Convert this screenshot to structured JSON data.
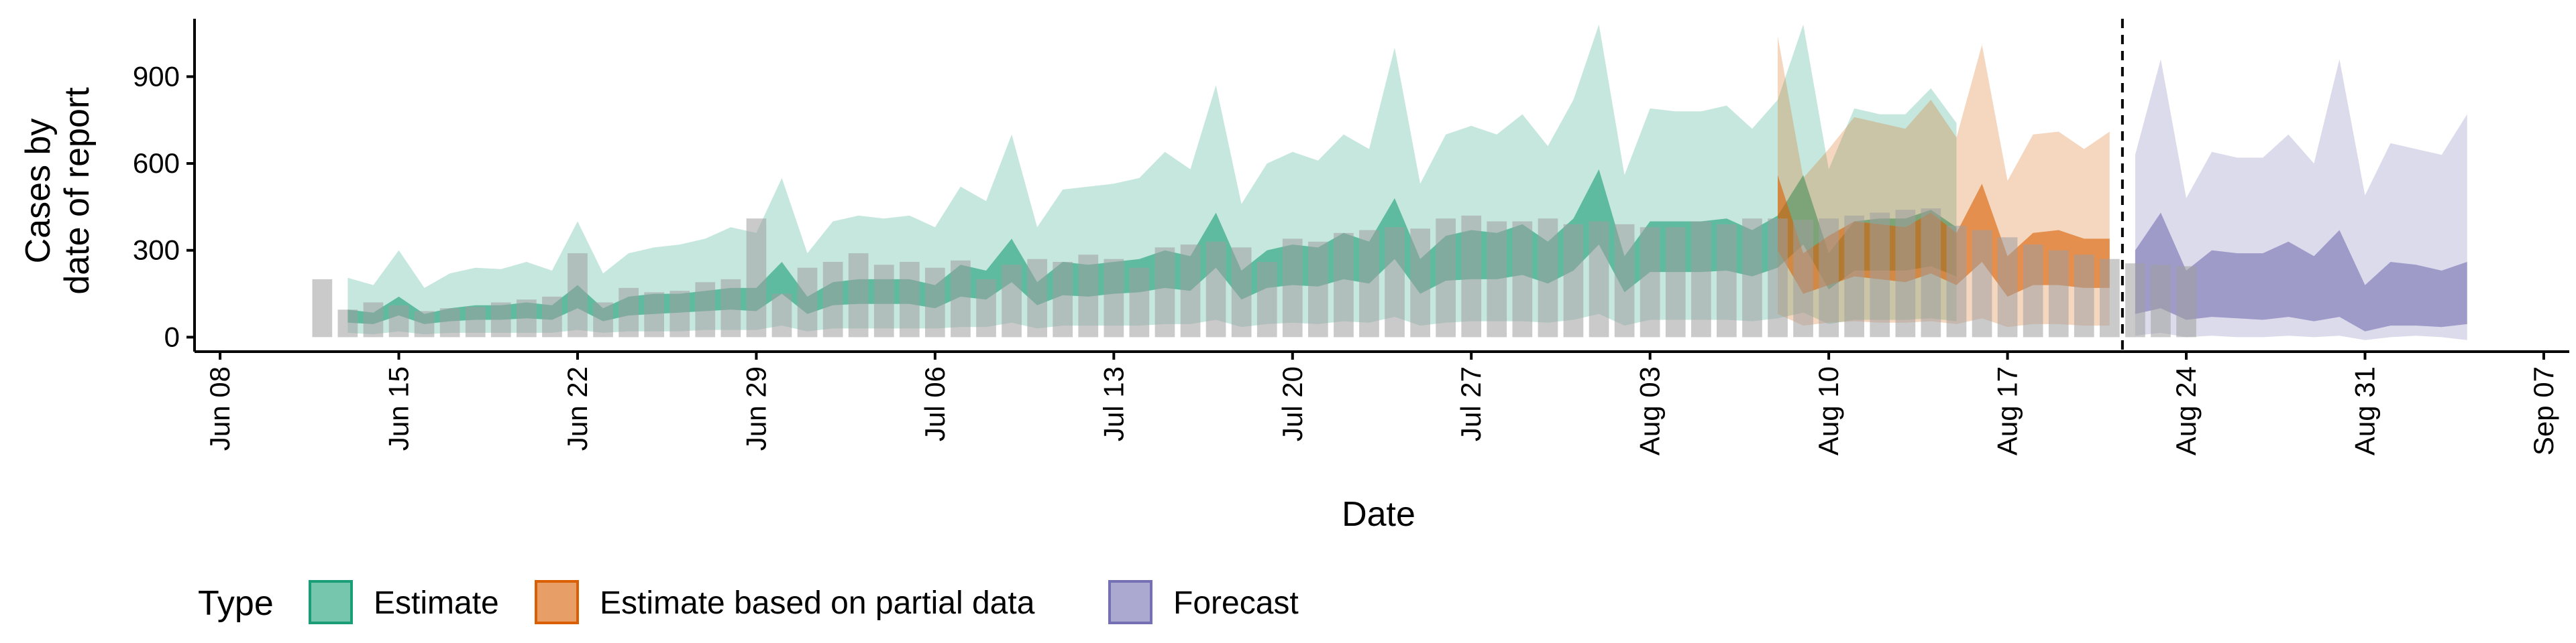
{
  "chart_data": {
    "type": "area",
    "xlabel": "Date",
    "ylabel_lines": [
      "Cases by",
      "date of report"
    ],
    "x_ticks": [
      "Jun 08",
      "Jun 15",
      "Jun 22",
      "Jun 29",
      "Jul 06",
      "Jul 13",
      "Jul 20",
      "Jul 27",
      "Aug 03",
      "Aug 10",
      "Aug 17",
      "Aug 24",
      "Aug 31",
      "Sep 07"
    ],
    "y_ticks": [
      0,
      300,
      600,
      900
    ],
    "xlim": [
      "2020-06-07",
      "2020-09-08"
    ],
    "ylim": [
      -50,
      1130
    ],
    "forecast_date": "2020-08-21",
    "colors": {
      "Estimate": "#1b9e77",
      "Estimate based on partial data": "#d95f02",
      "Forecast": "#7570b3",
      "reported": "#9e9e9e"
    },
    "legend": {
      "title": "Type",
      "position": "bottom",
      "items": [
        "Estimate",
        "Estimate based on partial data",
        "Forecast"
      ]
    },
    "reported_cases": {
      "start_date": "2020-06-12",
      "values": [
        200,
        95,
        120,
        110,
        90,
        100,
        105,
        120,
        130,
        140,
        290,
        120,
        170,
        155,
        160,
        190,
        200,
        410,
        150,
        240,
        260,
        290,
        250,
        260,
        240,
        265,
        200,
        250,
        270,
        260,
        285,
        270,
        240,
        310,
        320,
        330,
        310,
        260,
        340,
        330,
        360,
        370,
        380,
        375,
        410,
        420,
        400,
        400,
        410,
        390,
        400,
        390,
        380,
        380,
        400,
        390,
        410,
        410,
        405,
        410,
        420,
        430,
        440,
        445,
        385,
        370,
        345,
        320,
        300,
        285,
        270,
        255,
        250,
        245
      ]
    },
    "series": [
      {
        "name": "Estimate",
        "start_date": "2020-06-13",
        "upper_90": [
          205,
          180,
          300,
          170,
          220,
          240,
          235,
          260,
          230,
          400,
          220,
          290,
          310,
          320,
          340,
          380,
          360,
          550,
          290,
          400,
          420,
          410,
          420,
          380,
          520,
          470,
          700,
          380,
          510,
          520,
          530,
          550,
          640,
          580,
          870,
          460,
          600,
          640,
          610,
          700,
          650,
          1000,
          530,
          700,
          730,
          700,
          770,
          660,
          820,
          1080,
          560,
          790,
          780,
          780,
          800,
          720,
          820,
          1080,
          580,
          790,
          770,
          770,
          860,
          740
        ],
        "upper_50": [
          95,
          85,
          140,
          80,
          100,
          110,
          110,
          120,
          110,
          180,
          100,
          140,
          150,
          150,
          160,
          170,
          170,
          260,
          140,
          190,
          200,
          200,
          200,
          180,
          250,
          230,
          340,
          190,
          260,
          250,
          260,
          270,
          300,
          280,
          430,
          230,
          300,
          320,
          310,
          360,
          330,
          480,
          270,
          350,
          370,
          360,
          390,
          330,
          410,
          580,
          280,
          400,
          400,
          400,
          410,
          370,
          420,
          560,
          290,
          400,
          410,
          410,
          440,
          380
        ],
        "lower_50": [
          50,
          45,
          75,
          45,
          55,
          60,
          60,
          65,
          60,
          100,
          55,
          75,
          80,
          85,
          90,
          95,
          90,
          150,
          80,
          110,
          115,
          115,
          115,
          100,
          140,
          130,
          190,
          110,
          145,
          140,
          150,
          155,
          170,
          160,
          240,
          130,
          170,
          180,
          175,
          200,
          185,
          270,
          150,
          195,
          200,
          200,
          215,
          185,
          230,
          320,
          155,
          225,
          225,
          225,
          230,
          210,
          240,
          320,
          165,
          230,
          230,
          230,
          245,
          210
        ],
        "lower_90": [
          15,
          10,
          20,
          10,
          15,
          15,
          15,
          15,
          15,
          25,
          15,
          20,
          20,
          20,
          25,
          25,
          25,
          40,
          20,
          30,
          30,
          30,
          30,
          30,
          35,
          35,
          50,
          30,
          40,
          40,
          40,
          40,
          45,
          45,
          60,
          35,
          45,
          50,
          45,
          55,
          50,
          70,
          40,
          50,
          55,
          55,
          55,
          50,
          60,
          80,
          40,
          60,
          60,
          60,
          60,
          55,
          65,
          85,
          45,
          60,
          60,
          60,
          65,
          55
        ]
      },
      {
        "name": "Estimate based on partial data",
        "start_date": "2020-08-08",
        "upper_90": [
          1040,
          550,
          650,
          760,
          740,
          720,
          820,
          690,
          1010,
          540,
          700,
          710,
          650,
          710
        ],
        "upper_50": [
          560,
          290,
          350,
          400,
          390,
          380,
          430,
          360,
          530,
          280,
          360,
          370,
          340,
          340
        ],
        "lower_50": [
          300,
          150,
          180,
          210,
          200,
          190,
          220,
          180,
          260,
          140,
          180,
          180,
          170,
          170
        ],
        "lower_90": [
          80,
          40,
          50,
          55,
          50,
          50,
          55,
          45,
          65,
          35,
          45,
          45,
          40,
          40
        ]
      },
      {
        "name": "Forecast",
        "start_date": "2020-08-22",
        "upper_90": [
          630,
          960,
          480,
          640,
          620,
          620,
          700,
          600,
          960,
          490,
          670,
          650,
          630,
          770
        ],
        "upper_50": [
          300,
          430,
          230,
          300,
          290,
          290,
          330,
          280,
          370,
          180,
          260,
          250,
          230,
          260
        ],
        "lower_50": [
          80,
          100,
          60,
          70,
          65,
          60,
          70,
          55,
          70,
          20,
          40,
          40,
          35,
          45
        ],
        "lower_90": [
          5,
          15,
          0,
          5,
          0,
          0,
          5,
          0,
          5,
          -10,
          0,
          5,
          0,
          -10
        ]
      }
    ]
  }
}
